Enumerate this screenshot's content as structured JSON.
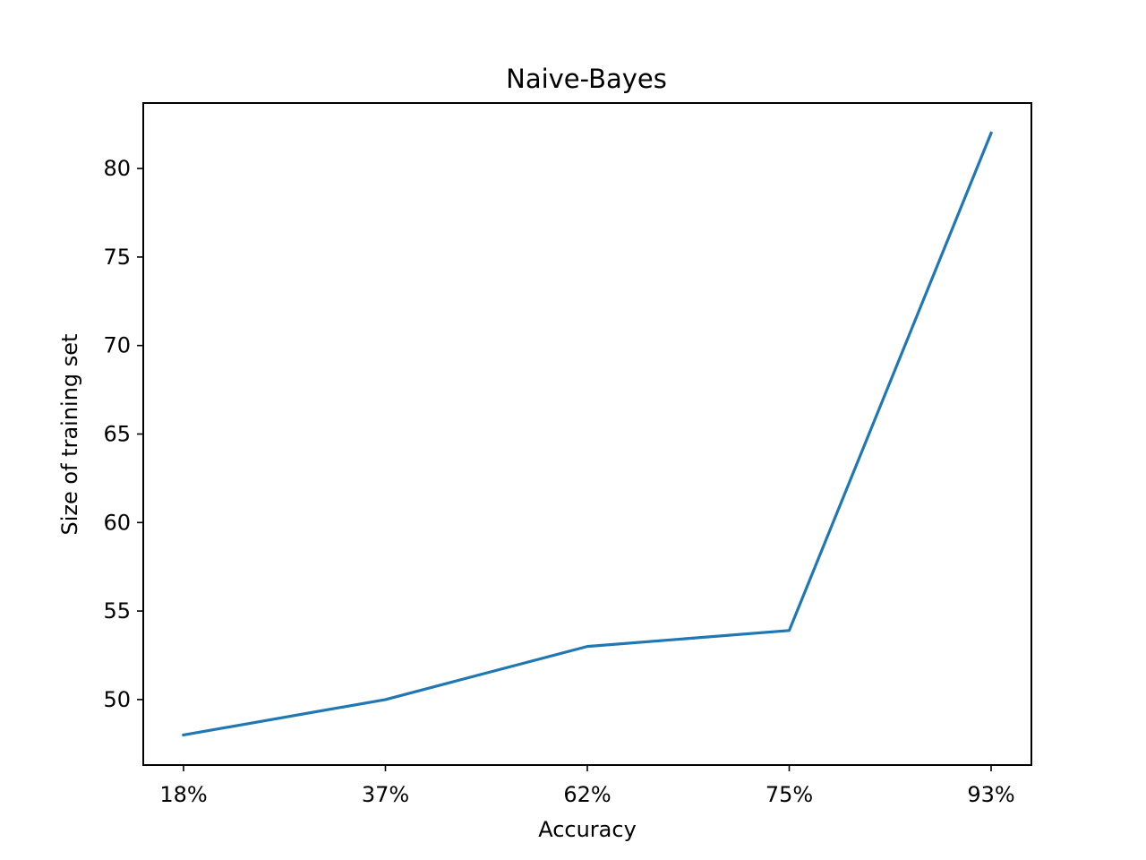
{
  "chart_data": {
    "type": "line",
    "title": "Naive-Bayes",
    "xlabel": "Accuracy",
    "ylabel": "Size of training set",
    "categories": [
      "18%",
      "37%",
      "62%",
      "75%",
      "93%"
    ],
    "series": [
      {
        "name": "Naive-Bayes",
        "color": "#1f77b4",
        "values": [
          48,
          50,
          53,
          53.9,
          82
        ]
      }
    ],
    "ylim": [
      46.3,
      83.7
    ],
    "yticks": [
      50,
      55,
      60,
      65,
      70,
      75,
      80
    ],
    "grid": false,
    "legend": "none"
  }
}
